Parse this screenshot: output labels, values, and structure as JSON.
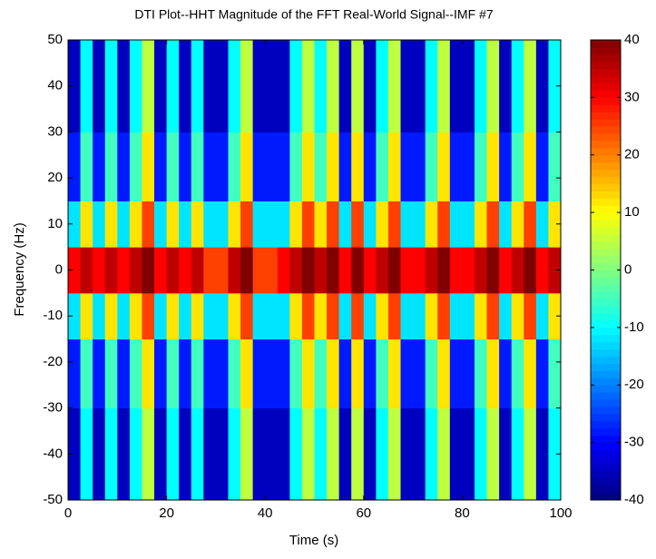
{
  "chart_data": {
    "type": "heatmap",
    "title": "DTI Plot--HHT Magnitude of the FFT Real-World Signal--IMF #7",
    "x_label": "Time (s)",
    "y_label": "Frequency (Hz)",
    "xbins": [
      0,
      2.5,
      5,
      7.5,
      10,
      12.5,
      15,
      17.5,
      20,
      22.5,
      25,
      27.5,
      30,
      32.5,
      35,
      37.5,
      40,
      42.5,
      45,
      47.5,
      50,
      52.5,
      55,
      57.5,
      60,
      62.5,
      65,
      67.5,
      70,
      72.5,
      75,
      77.5,
      80,
      82.5,
      85,
      87.5,
      90,
      92.5,
      95,
      97.5,
      100
    ],
    "ybins": [
      -50,
      -30,
      -15,
      -5,
      5,
      15,
      30,
      50
    ],
    "z": [
      [
        -35,
        -10,
        -35,
        -10,
        -35,
        -10,
        5,
        -35,
        -10,
        -35,
        -10,
        -35,
        -35,
        -10,
        5,
        -35,
        -35,
        -35,
        -10,
        5,
        -10,
        5,
        -35,
        5,
        -35,
        -10,
        5,
        -35,
        -35,
        -10,
        5,
        -35,
        -35,
        -10,
        5,
        -35,
        -10,
        5,
        -35,
        -10
      ],
      [
        -28,
        -5,
        -28,
        -5,
        -28,
        -5,
        12,
        -28,
        -5,
        -28,
        -5,
        -28,
        -28,
        -5,
        12,
        -28,
        -28,
        -28,
        -5,
        12,
        -5,
        12,
        -28,
        12,
        -28,
        -5,
        12,
        -28,
        -28,
        -5,
        12,
        -28,
        -28,
        -5,
        12,
        -28,
        -5,
        12,
        -28,
        -5
      ],
      [
        -12,
        12,
        -12,
        12,
        -12,
        12,
        25,
        -12,
        12,
        -12,
        12,
        -12,
        -12,
        12,
        25,
        -12,
        -12,
        -12,
        12,
        25,
        12,
        25,
        -12,
        25,
        -12,
        12,
        25,
        -12,
        -12,
        12,
        25,
        -12,
        -12,
        12,
        25,
        -12,
        12,
        25,
        -12,
        12
      ],
      [
        30,
        35,
        30,
        35,
        30,
        35,
        40,
        30,
        35,
        30,
        35,
        25,
        25,
        35,
        40,
        25,
        25,
        30,
        35,
        40,
        35,
        40,
        30,
        40,
        30,
        35,
        40,
        30,
        30,
        35,
        40,
        30,
        30,
        35,
        40,
        30,
        35,
        40,
        30,
        35
      ],
      [
        -12,
        12,
        -12,
        12,
        -12,
        12,
        25,
        -12,
        12,
        -12,
        12,
        -12,
        -12,
        12,
        25,
        -12,
        -12,
        -12,
        12,
        25,
        12,
        25,
        -12,
        25,
        -12,
        12,
        25,
        -12,
        -12,
        12,
        25,
        -12,
        -12,
        12,
        25,
        -12,
        12,
        25,
        -12,
        12
      ],
      [
        -28,
        -5,
        -28,
        -5,
        -28,
        -5,
        12,
        -28,
        -5,
        -28,
        -5,
        -28,
        -28,
        -5,
        12,
        -28,
        -28,
        -28,
        -5,
        12,
        -5,
        12,
        -28,
        12,
        -28,
        -5,
        12,
        -28,
        -28,
        -5,
        12,
        -28,
        -28,
        -5,
        12,
        -28,
        -5,
        12,
        -28,
        -5
      ],
      [
        -35,
        -10,
        -35,
        -10,
        -35,
        -10,
        5,
        -35,
        -10,
        -35,
        -10,
        -35,
        -35,
        -10,
        5,
        -35,
        -35,
        -35,
        -10,
        5,
        -10,
        5,
        -35,
        5,
        -35,
        -10,
        5,
        -35,
        -35,
        -10,
        5,
        -35,
        -35,
        -10,
        5,
        -35,
        -10,
        5,
        -35,
        -10
      ]
    ],
    "xlim": [
      0,
      100
    ],
    "xticks": [
      0,
      20,
      40,
      60,
      80,
      100
    ],
    "ylim": [
      -50,
      50
    ],
    "yticks": [
      -50,
      -40,
      -30,
      -20,
      -10,
      0,
      10,
      20,
      30,
      40,
      50
    ],
    "zlim": [
      -40,
      40
    ],
    "zticks": [
      -40,
      -30,
      -20,
      -10,
      0,
      10,
      20,
      30,
      40
    ],
    "colormap": "jet"
  }
}
